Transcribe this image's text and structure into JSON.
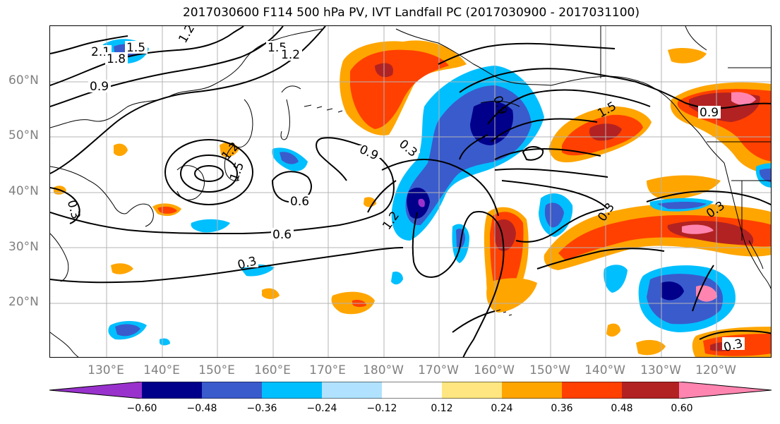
{
  "title": "2017030600 F114 500 hPa PV, IVT Landfall PC (2017030900 - 2017031100)",
  "lat_labels": [
    "60°N",
    "50°N",
    "40°N",
    "30°N",
    "20°N"
  ],
  "lon_labels": [
    "130°E",
    "140°E",
    "150°E",
    "160°E",
    "170°E",
    "180°W",
    "170°W",
    "160°W",
    "150°W",
    "140°W",
    "130°W",
    "120°W"
  ],
  "colorbar": {
    "ticks": [
      "−0.60",
      "−0.48",
      "−0.36",
      "−0.24",
      "−0.12",
      "0.12",
      "0.24",
      "0.36",
      "0.48",
      "0.60"
    ],
    "colors": [
      "#9932cc",
      "#00008b",
      "#3a5bcc",
      "#00bfff",
      "#b0e2ff",
      "#ffffff",
      "#ffe680",
      "#ffa500",
      "#ff4000",
      "#b22222",
      "#ff85b0"
    ]
  },
  "contour_labels": [
    "2.1",
    "1.8",
    "1.5",
    "1.2",
    "0.9",
    "1.5",
    "1.2",
    "0.9",
    "0.3",
    "1.5",
    "1.2",
    "1.5",
    "0.3",
    "0.9",
    "0.6",
    "0.6",
    "1.2",
    "0.3",
    "0.3",
    "0.3",
    "0.3",
    "0.9"
  ],
  "colors": {
    "axis_label": "#808080",
    "grid": "#b4b4b4",
    "contour": "#000000"
  }
}
